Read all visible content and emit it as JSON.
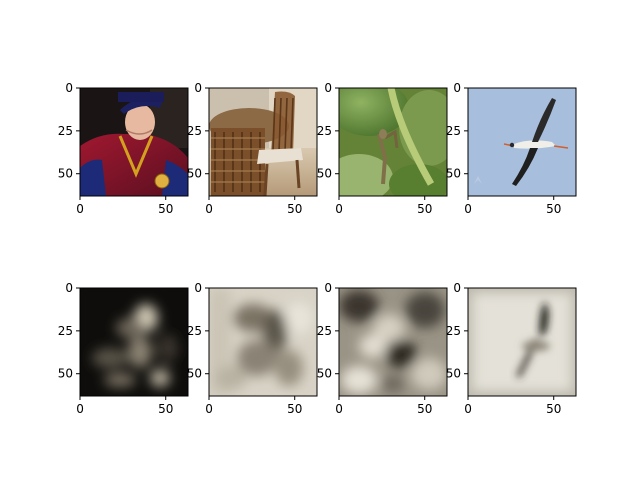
{
  "chart_data": {
    "type": "image-grid",
    "rows": 2,
    "cols": 4,
    "grid": false,
    "xlim": [
      0,
      63
    ],
    "ylim": [
      63,
      0
    ],
    "x_ticks": [
      0,
      50
    ],
    "y_ticks": [
      0,
      25,
      50
    ],
    "panels": [
      {
        "row": 0,
        "col": 0,
        "content": "man-in-academic-robe-photo"
      },
      {
        "row": 0,
        "col": 1,
        "content": "wooden-chairs-and-table-photo"
      },
      {
        "row": 0,
        "col": 2,
        "content": "mantis-on-green-plant-photo"
      },
      {
        "row": 0,
        "col": 3,
        "content": "stork-flying-in-sky-photo"
      },
      {
        "row": 1,
        "col": 0,
        "content": "blurry-reconstruction-dark"
      },
      {
        "row": 1,
        "col": 1,
        "content": "blurry-reconstruction-light"
      },
      {
        "row": 1,
        "col": 2,
        "content": "blurry-reconstruction-mid"
      },
      {
        "row": 1,
        "col": 3,
        "content": "blurry-reconstruction-bird"
      }
    ]
  }
}
